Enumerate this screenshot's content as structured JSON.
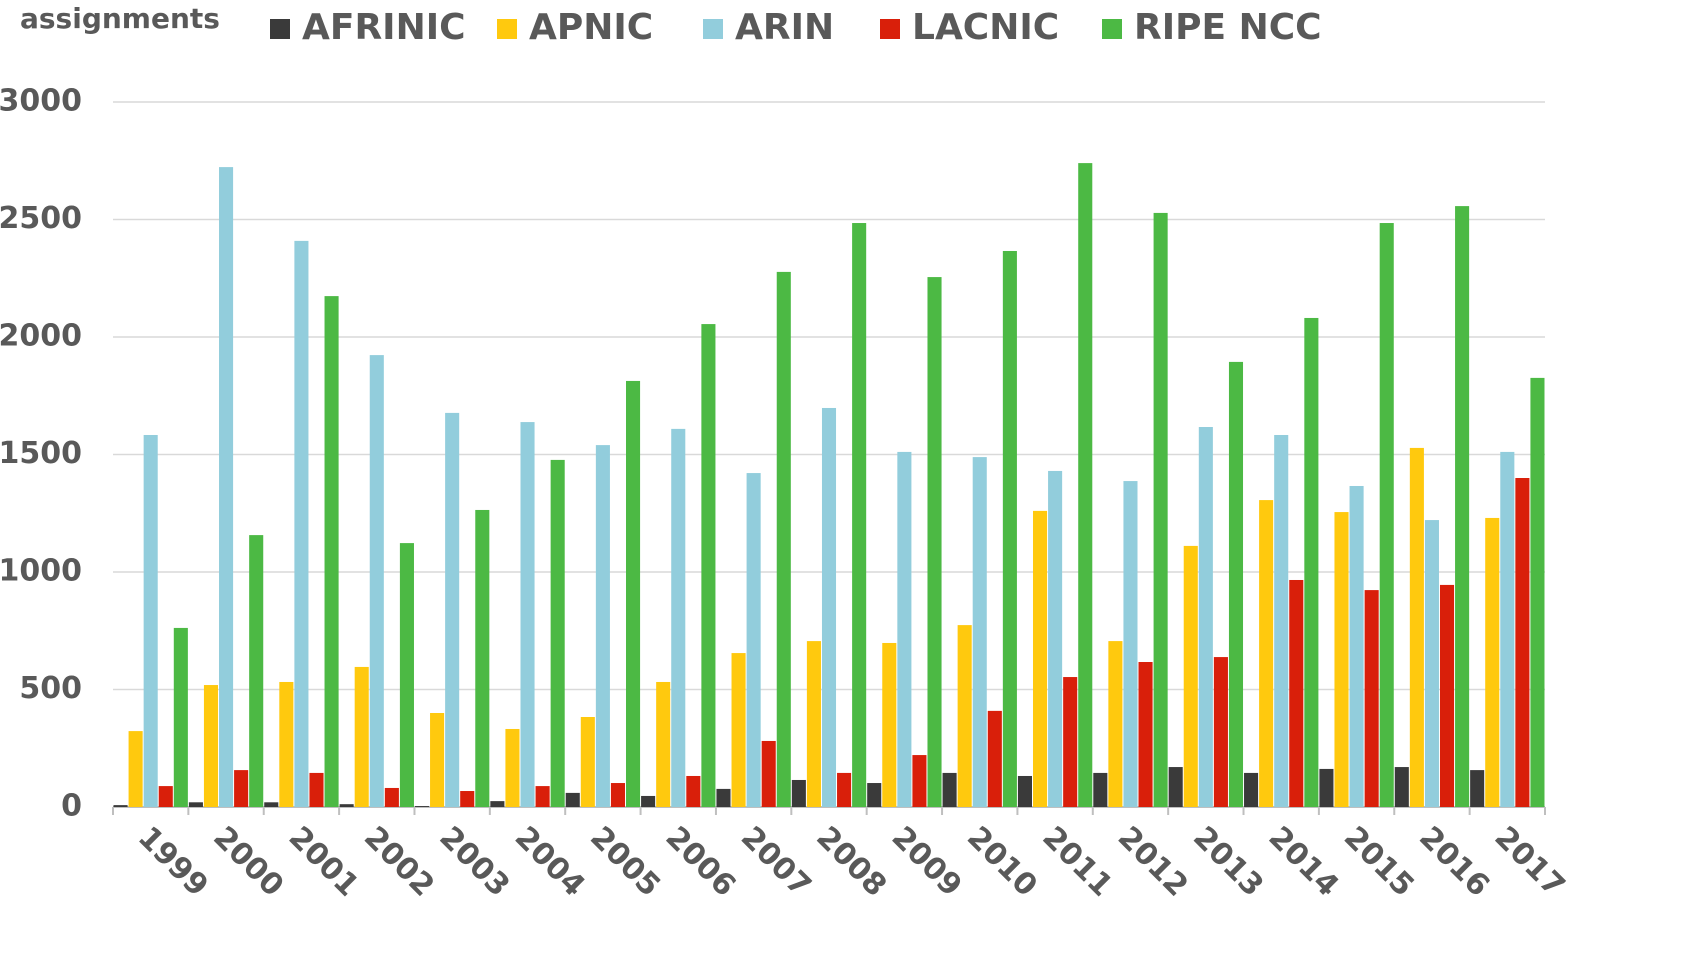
{
  "chart_data": {
    "type": "bar",
    "y_label": "assignments",
    "categories": [
      "1999",
      "2000",
      "2001",
      "2002",
      "2003",
      "2004",
      "2005",
      "2006",
      "2007",
      "2008",
      "2009",
      "2010",
      "2011",
      "2012",
      "2013",
      "2014",
      "2015",
      "2016",
      "2017"
    ],
    "series": [
      {
        "name": "AFRINIC",
        "color": "#3a3a3a",
        "values": [
          8,
          20,
          20,
          12,
          4,
          25,
          60,
          47,
          77,
          115,
          102,
          145,
          132,
          145,
          170,
          145,
          162,
          170,
          157
        ]
      },
      {
        "name": "APNIC",
        "color": "#ffc90e",
        "values": [
          323,
          519,
          532,
          596,
          400,
          332,
          383,
          532,
          655,
          706,
          698,
          774,
          1260,
          706,
          1111,
          1306,
          1255,
          1528,
          1230
        ]
      },
      {
        "name": "ARIN",
        "color": "#92cddc",
        "values": [
          1583,
          2723,
          2409,
          1923,
          1677,
          1638,
          1540,
          1609,
          1421,
          1698,
          1511,
          1489,
          1430,
          1387,
          1617,
          1583,
          1366,
          1221,
          1511
        ]
      },
      {
        "name": "LACNIC",
        "color": "#d91f0a",
        "values": [
          89,
          157,
          145,
          81,
          68,
          89,
          102,
          132,
          281,
          145,
          221,
          409,
          553,
          617,
          638,
          966,
          923,
          945,
          1400
        ]
      },
      {
        "name": "RIPE NCC",
        "color": "#4cb944",
        "values": [
          762,
          1157,
          2174,
          1123,
          1264,
          1477,
          1813,
          2055,
          2277,
          2485,
          2255,
          2366,
          2740,
          2528,
          1894,
          2081,
          2485,
          2557,
          1826
        ]
      }
    ],
    "ylim": [
      0,
      3000
    ],
    "yticks": [
      0,
      500,
      1000,
      1500,
      2000,
      2500,
      3000
    ],
    "grid": true
  }
}
